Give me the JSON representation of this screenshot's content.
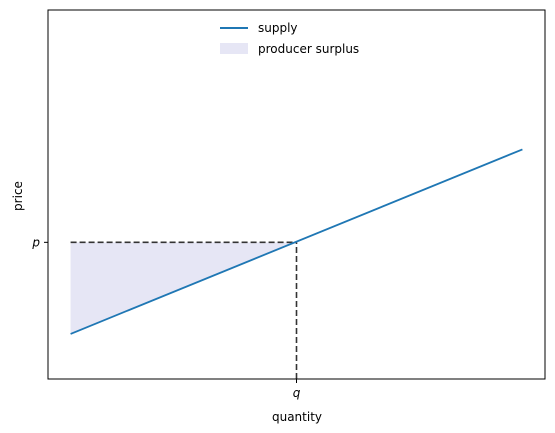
{
  "chart_data": {
    "type": "line",
    "title": "",
    "xlabel": "quantity",
    "ylabel": "price",
    "xlim": [
      -0.05,
      1.05
    ],
    "ylim": [
      -0.1,
      2.6
    ],
    "x_ticks": [
      {
        "value": 0.5,
        "label": "q"
      }
    ],
    "y_ticks": [
      {
        "value": 0.9,
        "label": "p"
      }
    ],
    "grid": false,
    "legend_position": "top-center",
    "series": [
      {
        "name": "supply",
        "type": "line",
        "color": "#1f77b4",
        "x": [
          0,
          1
        ],
        "y": [
          0.23,
          1.58
        ]
      }
    ],
    "areas": [
      {
        "name": "producer surplus",
        "color": "#e6e6f5",
        "x": [
          0,
          0.5
        ],
        "y_upper": [
          0.9,
          0.9
        ],
        "y_lower": [
          0.23,
          0.905
        ]
      }
    ],
    "reference_lines": [
      {
        "orientation": "horizontal",
        "y": 0.9,
        "x_range": [
          0,
          0.5
        ],
        "style": "dashed",
        "color": "#333333"
      },
      {
        "orientation": "vertical",
        "x": 0.5,
        "y_range": [
          -0.1,
          0.9
        ],
        "style": "dashed",
        "color": "#333333"
      }
    ]
  }
}
